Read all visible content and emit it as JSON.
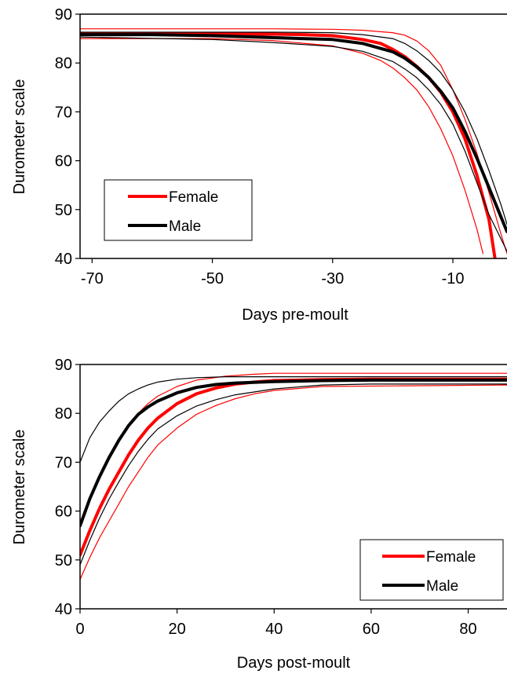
{
  "colors": {
    "female": "#ff0000",
    "male": "#000000"
  },
  "chart_data": [
    {
      "type": "line",
      "xlabel": "Days pre-moult",
      "ylabel": "Durometer scale",
      "xlim": [
        -72,
        -1
      ],
      "ylim": [
        40,
        90
      ],
      "xticks": [
        -70,
        -50,
        -30,
        -10
      ],
      "yticks": [
        40,
        50,
        60,
        70,
        80,
        90
      ],
      "grid": false,
      "legend": {
        "position": "bottom-left",
        "entries": [
          "Female",
          "Male"
        ]
      },
      "series": [
        {
          "name": "Female",
          "role": "mean",
          "color": "#ff0000",
          "width": "thick",
          "x": [
            -72,
            -60,
            -50,
            -40,
            -35,
            -30,
            -25,
            -22,
            -20,
            -18,
            -16,
            -14,
            -12,
            -10,
            -8,
            -6,
            -4,
            -3
          ],
          "y": [
            86,
            86,
            86,
            85.9,
            85.8,
            85.6,
            84.8,
            84,
            82.8,
            81.3,
            79.3,
            77,
            74,
            70,
            64.5,
            57,
            48,
            40
          ]
        },
        {
          "name": "",
          "role": "upper",
          "color": "#ff0000",
          "width": "thin",
          "x": [
            -72,
            -40,
            -30,
            -25,
            -20,
            -18,
            -16,
            -14,
            -12,
            -10,
            -8,
            -6,
            -4,
            -2,
            -1
          ],
          "y": [
            87,
            87,
            86.9,
            86.7,
            86.2,
            85.7,
            84.5,
            82.5,
            79.5,
            74.5,
            68.5,
            61.5,
            53.5,
            45,
            41
          ]
        },
        {
          "name": "",
          "role": "lower",
          "color": "#ff0000",
          "width": "thin",
          "x": [
            -72,
            -50,
            -40,
            -30,
            -25,
            -22,
            -20,
            -18,
            -16,
            -14,
            -12,
            -10,
            -8,
            -6,
            -5
          ],
          "y": [
            85,
            85,
            84.6,
            83.5,
            82,
            80.5,
            79,
            77,
            74.5,
            71,
            66.5,
            61,
            54,
            46,
            41
          ]
        },
        {
          "name": "Male",
          "role": "mean",
          "color": "#000000",
          "width": "thick",
          "x": [
            -72,
            -60,
            -50,
            -40,
            -35,
            -30,
            -25,
            -20,
            -18,
            -16,
            -14,
            -12,
            -10,
            -8,
            -6,
            -4,
            -2,
            -1
          ],
          "y": [
            85.8,
            85.8,
            85.6,
            85.2,
            85,
            84.8,
            84,
            82.3,
            81,
            79.2,
            77,
            74.2,
            70.8,
            66,
            60.5,
            54.5,
            48.5,
            45.5
          ]
        },
        {
          "name": "",
          "role": "upper",
          "color": "#000000",
          "width": "thin",
          "x": [
            -72,
            -40,
            -30,
            -25,
            -20,
            -18,
            -16,
            -14,
            -12,
            -10,
            -8,
            -6,
            -4,
            -2,
            -1
          ],
          "y": [
            86.3,
            86.3,
            86.2,
            85.8,
            85,
            84,
            82.5,
            80.5,
            78,
            74.5,
            70,
            64.5,
            58,
            51,
            47
          ]
        },
        {
          "name": "",
          "role": "lower",
          "color": "#000000",
          "width": "thin",
          "x": [
            -72,
            -50,
            -40,
            -30,
            -25,
            -20,
            -18,
            -16,
            -14,
            -12,
            -10,
            -8,
            -6,
            -4,
            -2,
            -1
          ],
          "y": [
            85.3,
            84.8,
            84.2,
            83.4,
            82.4,
            80.3,
            78.8,
            77,
            74.5,
            71.5,
            67.5,
            62,
            55.5,
            49,
            44,
            41.5
          ]
        }
      ]
    },
    {
      "type": "line",
      "xlabel": "Days post-moult",
      "ylabel": "Durometer scale",
      "xlim": [
        0,
        88
      ],
      "ylim": [
        40,
        90
      ],
      "xticks": [
        0,
        20,
        40,
        60,
        80
      ],
      "yticks": [
        40,
        50,
        60,
        70,
        80,
        90
      ],
      "grid": false,
      "legend": {
        "position": "bottom-right",
        "entries": [
          "Female",
          "Male"
        ]
      },
      "series": [
        {
          "name": "Female",
          "role": "mean",
          "color": "#ff0000",
          "width": "thick",
          "x": [
            0,
            2,
            4,
            6,
            8,
            10,
            12,
            14,
            16,
            20,
            24,
            28,
            32,
            36,
            40,
            50,
            60,
            70,
            88
          ],
          "y": [
            51,
            56,
            60.5,
            64.5,
            68,
            71.5,
            74.5,
            77,
            79,
            82,
            84,
            85.2,
            86,
            86.4,
            86.7,
            86.9,
            87,
            87,
            87
          ]
        },
        {
          "name": "",
          "role": "upper",
          "color": "#ff0000",
          "width": "thin",
          "x": [
            0,
            2,
            4,
            6,
            8,
            10,
            12,
            14,
            16,
            20,
            24,
            30,
            36,
            40,
            50,
            88
          ],
          "y": [
            57,
            62.5,
            67,
            71,
            74.5,
            77.5,
            80,
            82,
            83.5,
            85.5,
            86.8,
            87.6,
            88,
            88.2,
            88.2,
            88.2
          ]
        },
        {
          "name": "",
          "role": "lower",
          "color": "#ff0000",
          "width": "thin",
          "x": [
            0,
            2,
            4,
            6,
            8,
            10,
            12,
            14,
            16,
            20,
            24,
            28,
            32,
            36,
            40,
            50,
            88
          ],
          "y": [
            46,
            50.5,
            54.5,
            58,
            61.5,
            65,
            68,
            71,
            73.5,
            77,
            79.8,
            81.6,
            83,
            84,
            84.7,
            85.5,
            85.8
          ]
        },
        {
          "name": "Male",
          "role": "mean",
          "color": "#000000",
          "width": "thick",
          "x": [
            0,
            2,
            4,
            6,
            8,
            10,
            12,
            14,
            16,
            20,
            24,
            28,
            32,
            40,
            50,
            60,
            88
          ],
          "y": [
            57,
            62.5,
            67,
            71,
            74.5,
            77.5,
            79.8,
            81.3,
            82.5,
            84.2,
            85.3,
            85.9,
            86.2,
            86.5,
            86.7,
            86.8,
            86.8
          ]
        },
        {
          "name": "",
          "role": "upper",
          "color": "#000000",
          "width": "thin",
          "x": [
            0,
            2,
            4,
            6,
            8,
            10,
            12,
            14,
            16,
            20,
            24,
            30,
            40,
            88
          ],
          "y": [
            70,
            75,
            78.2,
            80.5,
            82.5,
            84,
            85,
            85.8,
            86.4,
            87,
            87.3,
            87.5,
            87.5,
            87.5
          ]
        },
        {
          "name": "",
          "role": "lower",
          "color": "#000000",
          "width": "thin",
          "x": [
            0,
            2,
            4,
            6,
            8,
            10,
            12,
            14,
            16,
            20,
            24,
            28,
            32,
            40,
            50,
            60,
            88
          ],
          "y": [
            49,
            54,
            58.5,
            62.5,
            66,
            69.3,
            72.2,
            74.7,
            76.8,
            79.5,
            81.5,
            82.8,
            83.8,
            85,
            85.8,
            86,
            86
          ]
        }
      ]
    }
  ]
}
